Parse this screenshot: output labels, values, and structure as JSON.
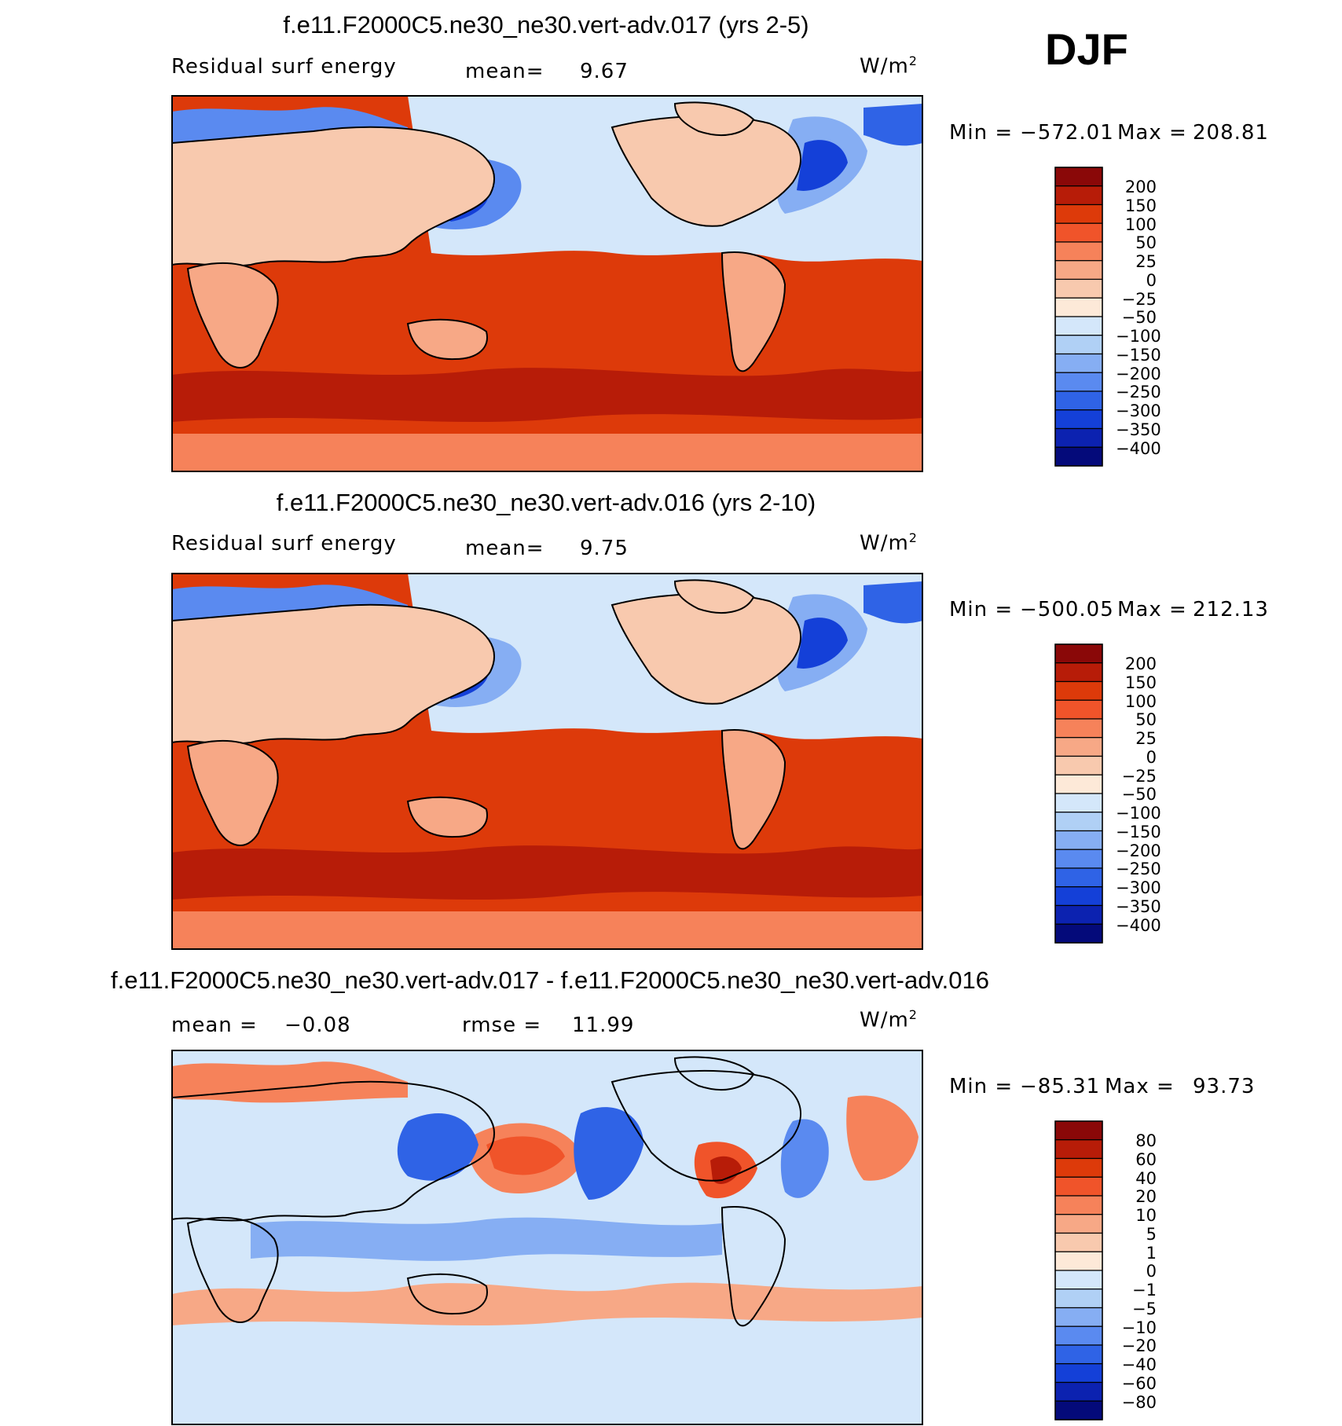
{
  "season_label": "DJF",
  "panels": [
    {
      "title": "f.e11.F2000C5.ne30_ne30.vert-adv.017 (yrs 2-5)",
      "left_label": "Residual surf energy",
      "stat1_label": "mean=",
      "stat1_value": "9.67",
      "stat2_label": "",
      "stat2_value": "",
      "units": "W/m",
      "units_power": "2",
      "min_label": "Min  =",
      "min_value": "−572.01",
      "max_label": "Max  =",
      "max_value": "208.81",
      "colorbar_ticks": [
        "200",
        "150",
        "100",
        "50",
        "25",
        "0",
        "−25",
        "−50",
        "−100",
        "−150",
        "−200",
        "−250",
        "−300",
        "−350",
        "−400"
      ]
    },
    {
      "title": "f.e11.F2000C5.ne30_ne30.vert-adv.016 (yrs 2-10)",
      "left_label": "Residual surf energy",
      "stat1_label": "mean=",
      "stat1_value": "9.75",
      "stat2_label": "",
      "stat2_value": "",
      "units": "W/m",
      "units_power": "2",
      "min_label": "Min  =",
      "min_value": "−500.05",
      "max_label": "Max  =",
      "max_value": "212.13",
      "colorbar_ticks": [
        "200",
        "150",
        "100",
        "50",
        "25",
        "0",
        "−25",
        "−50",
        "−100",
        "−150",
        "−200",
        "−250",
        "−300",
        "−350",
        "−400"
      ]
    },
    {
      "title": "f.e11.F2000C5.ne30_ne30.vert-adv.017 - f.e11.F2000C5.ne30_ne30.vert-adv.016",
      "left_label": "",
      "stat1_label": "mean  =",
      "stat1_value": "−0.08",
      "stat2_label": "rmse  =",
      "stat2_value": "11.99",
      "units": "W/m",
      "units_power": "2",
      "min_label": "Min  =",
      "min_value": "−85.31",
      "max_label": "Max  =",
      "max_value": "93.73",
      "colorbar_ticks": [
        "80",
        "60",
        "40",
        "20",
        "10",
        "5",
        "1",
        "0",
        "−1",
        "−5",
        "−10",
        "−20",
        "−40",
        "−60",
        "−80"
      ]
    }
  ],
  "colors": {
    "field_colorbar": [
      "#8a0808",
      "#b71c08",
      "#dd3a0a",
      "#f0542a",
      "#f6825a",
      "#f7a886",
      "#f8c9ae",
      "#fde9d8",
      "#d4e7fa",
      "#b0d0f5",
      "#86aef3",
      "#5a8af0",
      "#2f63e6",
      "#1440d8",
      "#0c22b0",
      "#040a7a"
    ],
    "diff_colorbar": [
      "#8a0808",
      "#b71c08",
      "#dd3a0a",
      "#f0542a",
      "#f6825a",
      "#f7a886",
      "#f8c9ae",
      "#fde9d8",
      "#d4e7fa",
      "#b0d0f5",
      "#86aef3",
      "#5a8af0",
      "#2f63e6",
      "#1440d8",
      "#0c22b0",
      "#040a7a"
    ]
  }
}
